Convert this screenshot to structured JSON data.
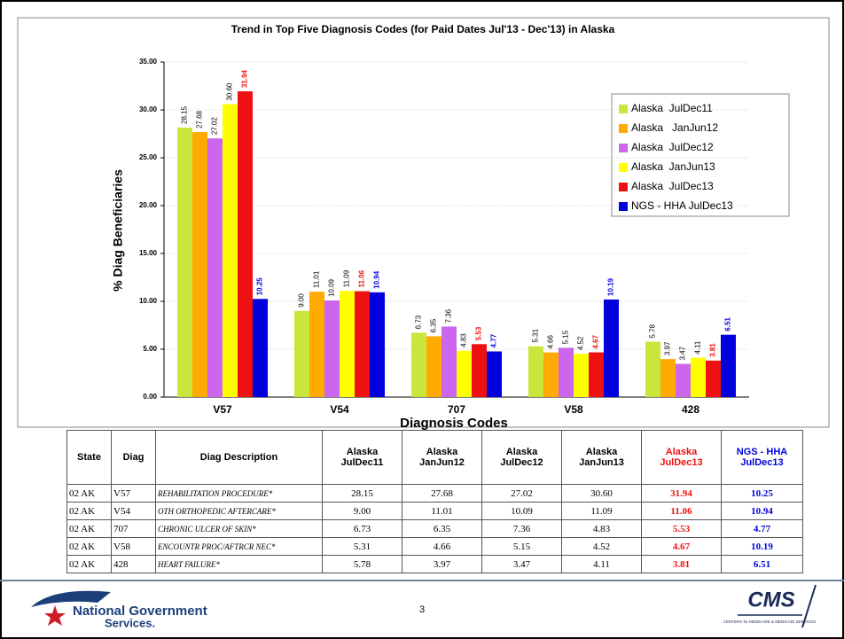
{
  "chart_data": {
    "type": "bar",
    "title": "Trend in Top Five Diagnosis Codes (for Paid Dates Jul'13 - Dec'13) in Alaska",
    "x_label": "Diagnosis Codes",
    "y_label": "% Diag Beneficiaries",
    "categories": [
      "V57",
      "V54",
      "707",
      "V58",
      "428"
    ],
    "series": [
      {
        "name": "Alaska  JulDec11",
        "color": "#c8e63c",
        "values": [
          28.15,
          9.0,
          6.73,
          5.31,
          5.78
        ],
        "value_labels": [
          "28.15",
          "9.00",
          "6.73",
          "5.31",
          "5.78"
        ]
      },
      {
        "name": "Alaska   JanJun12",
        "color": "#ffaa00",
        "values": [
          27.68,
          11.01,
          6.35,
          4.66,
          3.97
        ],
        "value_labels": [
          "27.68",
          "11.01",
          "6.35",
          "4.66",
          "3.97"
        ]
      },
      {
        "name": "Alaska  JulDec12",
        "color": "#cc66ee",
        "values": [
          27.02,
          10.09,
          7.36,
          5.15,
          3.47
        ],
        "value_labels": [
          "27.02",
          "10.09",
          "7.36",
          "5.15",
          "3.47"
        ]
      },
      {
        "name": "Alaska  JanJun13",
        "color": "#ffff00",
        "values": [
          30.6,
          11.09,
          4.83,
          4.52,
          4.11
        ],
        "value_labels": [
          "30.60",
          "11.09",
          "4.83",
          "4.52",
          "4.11"
        ]
      },
      {
        "name": "Alaska  JulDec13",
        "color": "#ee1111",
        "values": [
          31.94,
          11.06,
          5.53,
          4.67,
          3.81
        ],
        "value_labels": [
          "31.94",
          "11.06",
          "5.53",
          "4.67",
          "3.81"
        ]
      },
      {
        "name": "NGS - HHA JulDec13",
        "color": "#0000dd",
        "values": [
          10.25,
          10.94,
          4.77,
          10.19,
          6.51
        ],
        "value_labels": [
          "10.25",
          "10.94",
          "4.77",
          "10.19",
          "6.51"
        ]
      }
    ],
    "ylim": [
      0,
      35
    ],
    "yticks": [
      {
        "value": 0,
        "label": "0.00"
      },
      {
        "value": 5,
        "label": "5.00"
      },
      {
        "value": 10,
        "label": "10.00"
      },
      {
        "value": 15,
        "label": "15.00"
      },
      {
        "value": 20,
        "label": "20.00"
      },
      {
        "value": 25,
        "label": "25.00"
      },
      {
        "value": 30,
        "label": "30.00"
      },
      {
        "value": 35,
        "label": "35.00"
      }
    ],
    "grid": true,
    "legend": "right"
  },
  "table": {
    "header": [
      "State",
      "Diag",
      "Diag Description",
      "Alaska JulDec11",
      "Alaska JanJun12",
      "Alaska JulDec12",
      "Alaska JanJun13",
      "Alaska JulDec13",
      "NGS - HHA JulDec13"
    ],
    "rows": [
      [
        "02 AK",
        "V57",
        "REHABILITATION PROCEDURE*",
        "28.15",
        "27.68",
        "27.02",
        "30.60",
        "31.94",
        "10.25"
      ],
      [
        "02 AK",
        "V54",
        "OTH ORTHOPEDIC AFTERCARE*",
        "9.00",
        "11.01",
        "10.09",
        "11.09",
        "11.06",
        "10.94"
      ],
      [
        "02 AK",
        "707",
        "CHRONIC ULCER OF SKIN*",
        "6.73",
        "6.35",
        "7.36",
        "4.83",
        "5.53",
        "4.77"
      ],
      [
        "02 AK",
        "V58",
        "ENCOUNTR PROC/AFTRCR NEC*",
        "5.31",
        "4.66",
        "5.15",
        "4.52",
        "4.67",
        "10.19"
      ],
      [
        "02 AK",
        "428",
        "HEART FAILURE*",
        "5.78",
        "3.97",
        "3.47",
        "4.11",
        "3.81",
        "6.51"
      ]
    ]
  },
  "footer": {
    "page": "3",
    "left_logo": [
      "National Government",
      "Services."
    ],
    "right_logo": "CMS",
    "right_logo_sub": "CENTERS for MEDICARE & MEDICAID SERVICES"
  }
}
